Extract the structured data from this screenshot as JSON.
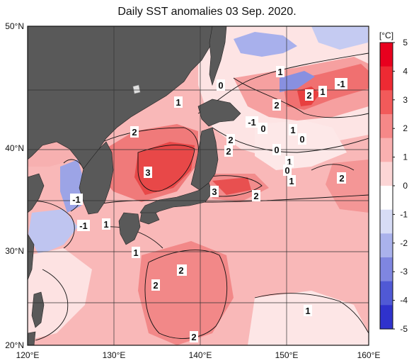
{
  "title": "Daily SST anomalies 03 Sep. 2020.",
  "x_ticks": [
    "120°E",
    "130°E",
    "140°E",
    "150°E",
    "160°E"
  ],
  "y_ticks": [
    "50°N",
    "40°N",
    "30°N",
    "20°N"
  ],
  "colorbar": {
    "unit": "[°C]",
    "ticks": [
      "5",
      "4",
      "3",
      "2",
      "1",
      "0",
      "-1",
      "-2",
      "-3",
      "-4",
      "-5"
    ],
    "colors": [
      "#e8001e",
      "#ee2a33",
      "#f25a5a",
      "#f68888",
      "#f9b0b0",
      "#fcd6d6",
      "#ffffff",
      "#d7dcf6",
      "#aab2ec",
      "#7f86e0",
      "#5059d5",
      "#2f32cc"
    ]
  },
  "land_color": "#595959",
  "contour_labels": [
    "1",
    "0",
    "1",
    "-1",
    "2",
    "1",
    "0",
    "2",
    "1",
    "0",
    "-1",
    "0",
    "1",
    "0",
    "2",
    "2",
    "2",
    "1",
    "3",
    "0",
    "1",
    "1",
    "3",
    "2",
    "2",
    "-1",
    "1",
    "-1",
    "1",
    "2",
    "2",
    "2",
    "2",
    "1"
  ]
}
